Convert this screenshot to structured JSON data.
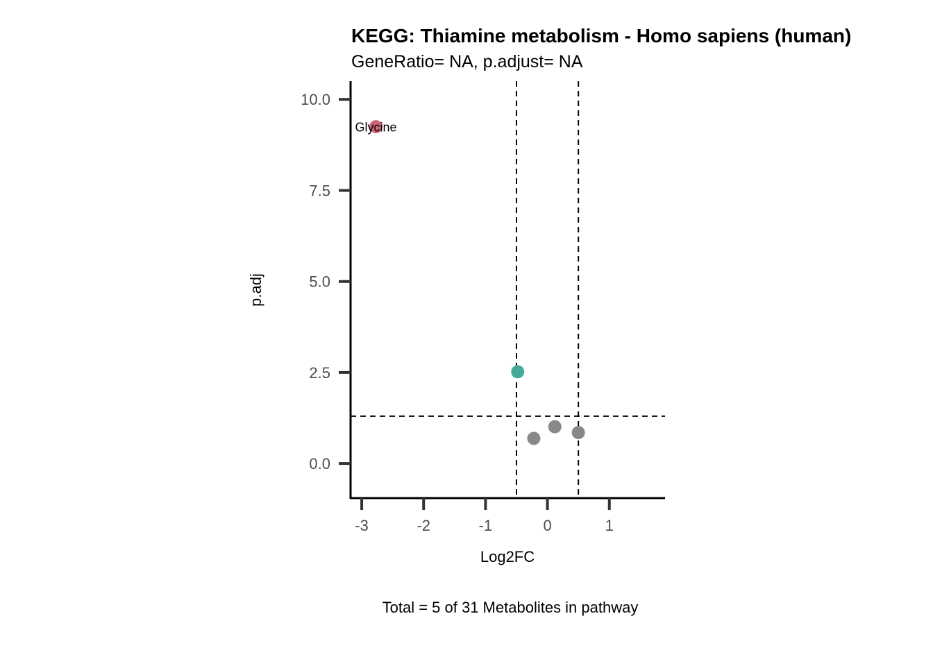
{
  "chart_data": {
    "type": "scatter",
    "title": "KEGG: Thiamine metabolism - Homo sapiens (human)",
    "subtitle": "GeneRatio= NA, p.adjust= NA",
    "xlabel": "Log2FC",
    "ylabel": "p.adj",
    "caption": "Total = 5 of 31 Metabolites in pathway",
    "xlim": [
      -3.18,
      1.9
    ],
    "ylim": [
      -0.95,
      10.5
    ],
    "x_ticks": [
      -3,
      -2,
      -1,
      0,
      1
    ],
    "x_tick_labels": [
      "-3",
      "-2",
      "-1",
      "0",
      "1"
    ],
    "y_ticks": [
      0,
      2.5,
      5,
      7.5,
      10
    ],
    "y_tick_labels": [
      "0.0",
      "2.5",
      "5.0",
      "7.5",
      "10.0"
    ],
    "reference_lines": {
      "vertical": [
        -0.5,
        0.5
      ],
      "horizontal": [
        1.3
      ]
    },
    "grid": false,
    "colors": {
      "up": "#cc6677",
      "down": "#44aa99",
      "ns": "#888888"
    },
    "points": [
      {
        "x": -2.77,
        "y": 9.25,
        "group": "up",
        "label": "Glycine"
      },
      {
        "x": -0.48,
        "y": 2.52,
        "group": "down",
        "label": ""
      },
      {
        "x": -0.22,
        "y": 0.69,
        "group": "ns",
        "label": ""
      },
      {
        "x": 0.12,
        "y": 1.01,
        "group": "ns",
        "label": ""
      },
      {
        "x": 0.5,
        "y": 0.85,
        "group": "ns",
        "label": ""
      }
    ]
  }
}
